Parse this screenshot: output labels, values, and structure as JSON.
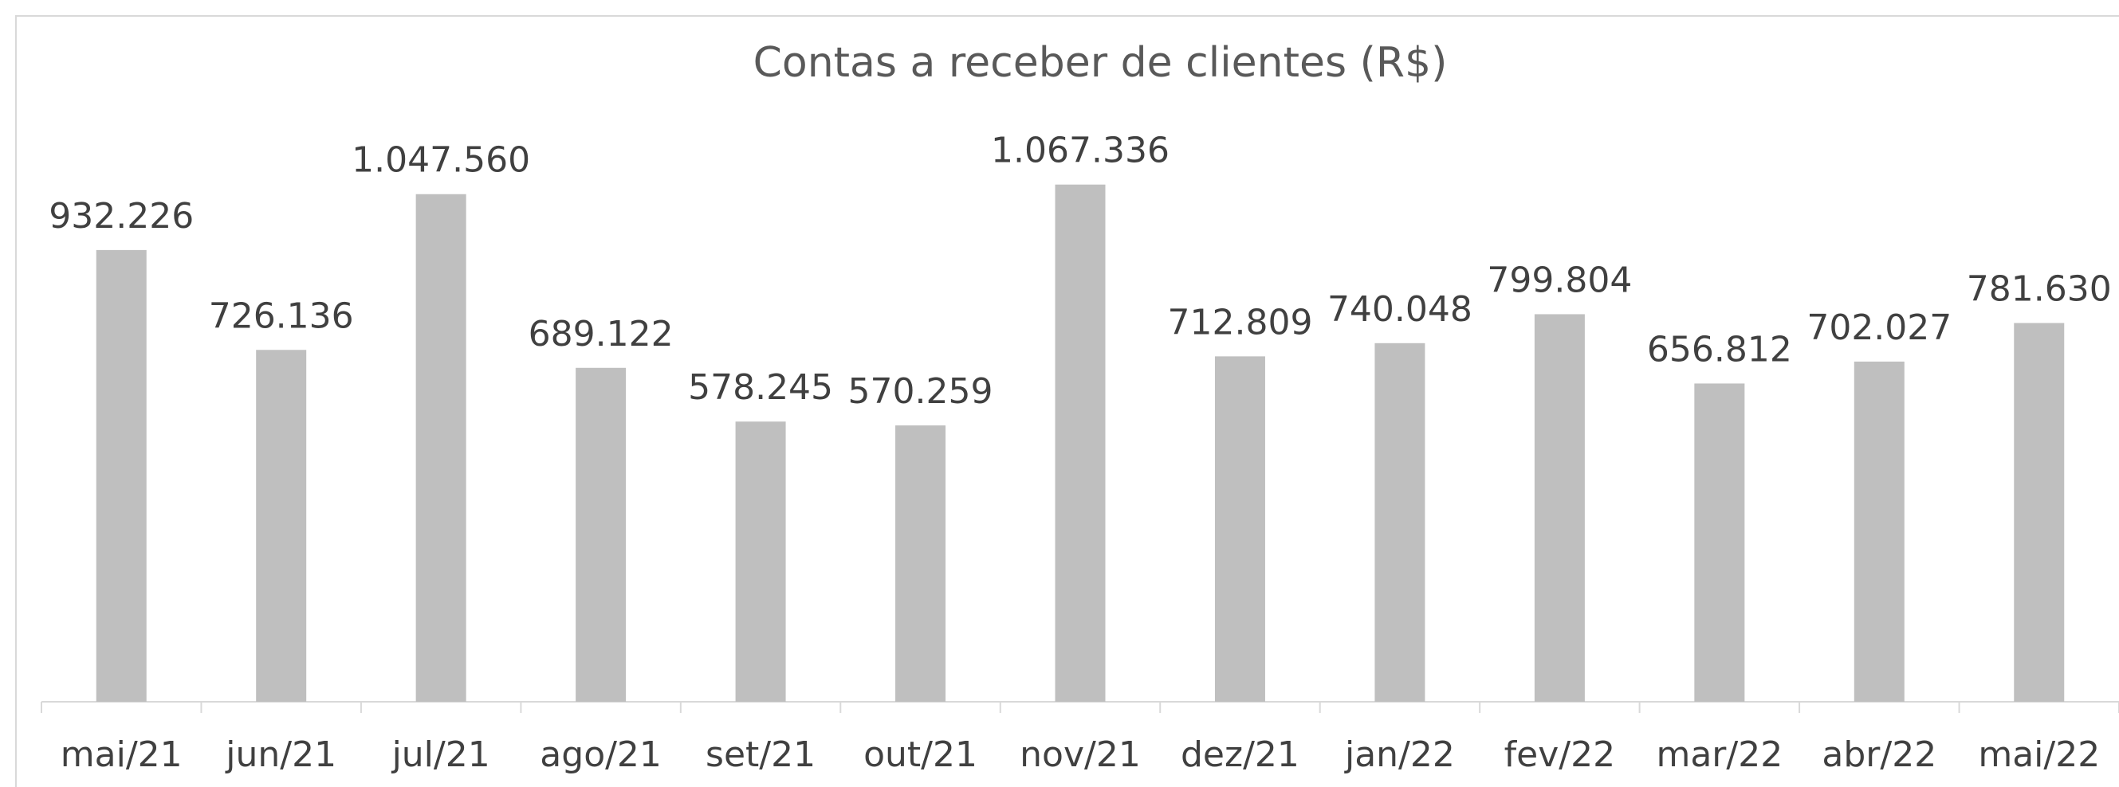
{
  "chart_data": {
    "type": "bar",
    "title": "Contas a receber de clientes (R$)",
    "categories": [
      "mai/21",
      "jun/21",
      "jul/21",
      "ago/21",
      "set/21",
      "out/21",
      "nov/21",
      "dez/21",
      "jan/22",
      "fev/22",
      "mar/22",
      "abr/22",
      "mai/22"
    ],
    "values": [
      932226,
      726136,
      1047560,
      689122,
      578245,
      570259,
      1067336,
      712809,
      740048,
      799804,
      656812,
      702027,
      781630
    ],
    "value_labels": [
      "932.226",
      "726.136",
      "1.047.560",
      "689.122",
      "578.245",
      "570.259",
      "1.067.336",
      "712.809",
      "740.048",
      "799.804",
      "656.812",
      "702.027",
      "781.630"
    ],
    "color": "#bfbfbf",
    "ylim": [
      0,
      1200000
    ]
  }
}
